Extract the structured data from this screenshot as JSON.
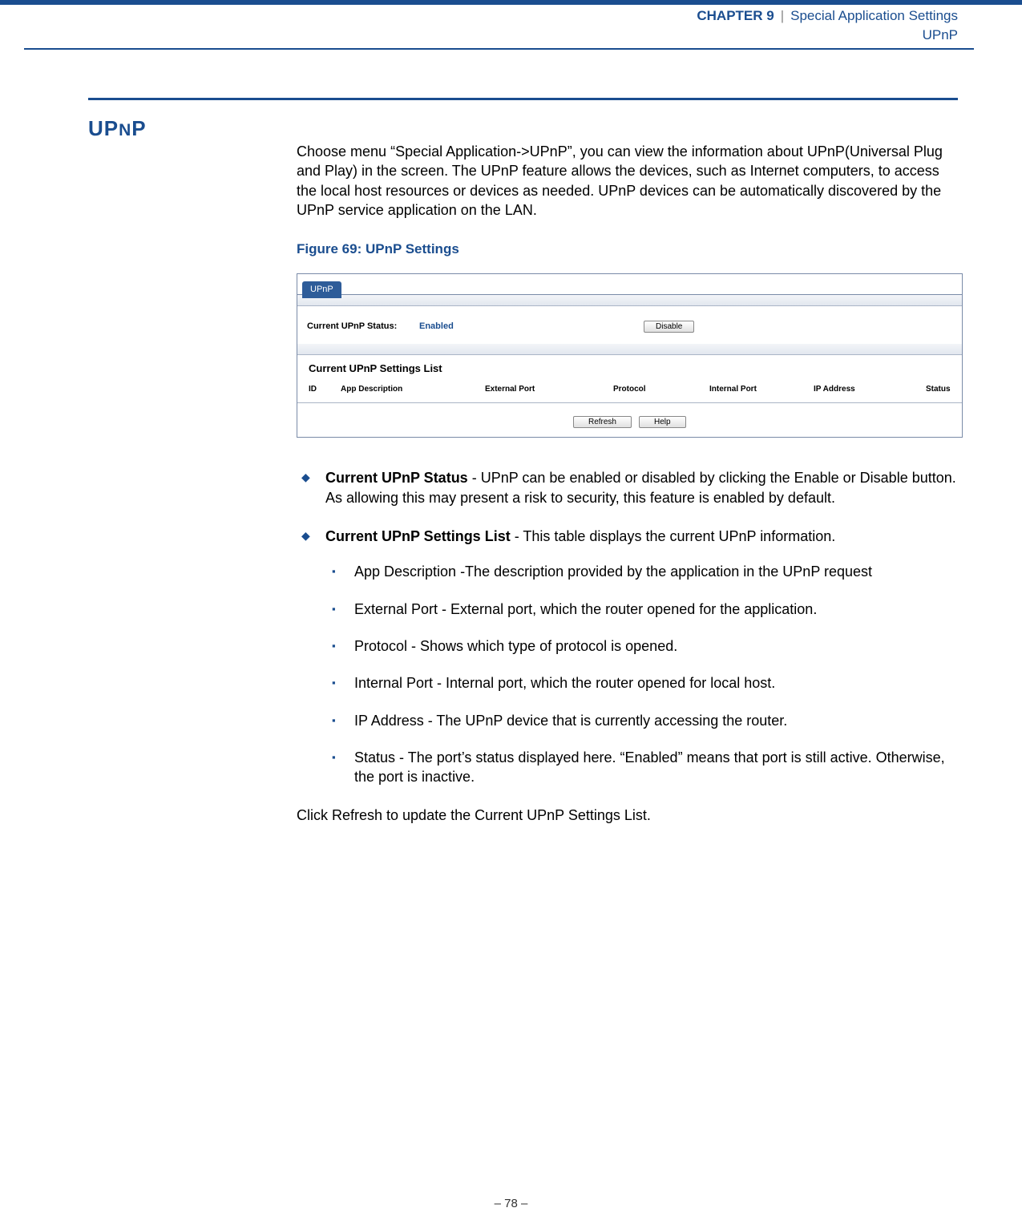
{
  "header": {
    "chapter_label": "CHAPTER 9",
    "separator": "|",
    "chapter_title": "Special Application Settings",
    "subtitle": "UPnP"
  },
  "section": {
    "heading_pre": "UP",
    "heading_sc": "N",
    "heading_post": "P"
  },
  "intro": "Choose menu “Special Application->UPnP”, you can view the information about UPnP(Universal Plug and Play) in the screen. The UPnP feature allows the devices, such as Internet computers, to access the local host resources or devices as needed. UPnP devices can be automatically discovered by the UPnP service application on the LAN.",
  "figure_label": "Figure 69:  UPnP Settings",
  "screenshot": {
    "tab": "UPnP",
    "status_label": "Current UPnP Status:",
    "status_value": "Enabled",
    "disable_btn": "Disable",
    "list_title": "Current UPnP Settings List",
    "columns": {
      "id": "ID",
      "app": "App Description",
      "ext": "External Port",
      "proto": "Protocol",
      "int": "Internal Port",
      "ip": "IP Address",
      "status": "Status"
    },
    "refresh_btn": "Refresh",
    "help_btn": "Help"
  },
  "bullets": [
    {
      "label": "Current UPnP Status",
      "text": " - UPnP can be enabled or disabled by clicking the Enable or Disable button. As allowing this may present a risk to security, this feature is enabled by default."
    },
    {
      "label": "Current UPnP Settings List",
      "text": " - This table displays the current UPnP information.",
      "subs": [
        "App Description -The description provided by the application in the UPnP request",
        "External Port - External port, which the router opened for the application.",
        "Protocol - Shows which type of protocol is opened.",
        "Internal Port - Internal port, which the router opened for local host.",
        "IP Address - The UPnP device that is currently accessing the router.",
        "Status - The port’s status displayed here. “Enabled” means that port is still active. Otherwise, the port is inactive."
      ]
    }
  ],
  "closing": "Click Refresh to update the Current UPnP Settings List.",
  "footer": "–  78  –"
}
